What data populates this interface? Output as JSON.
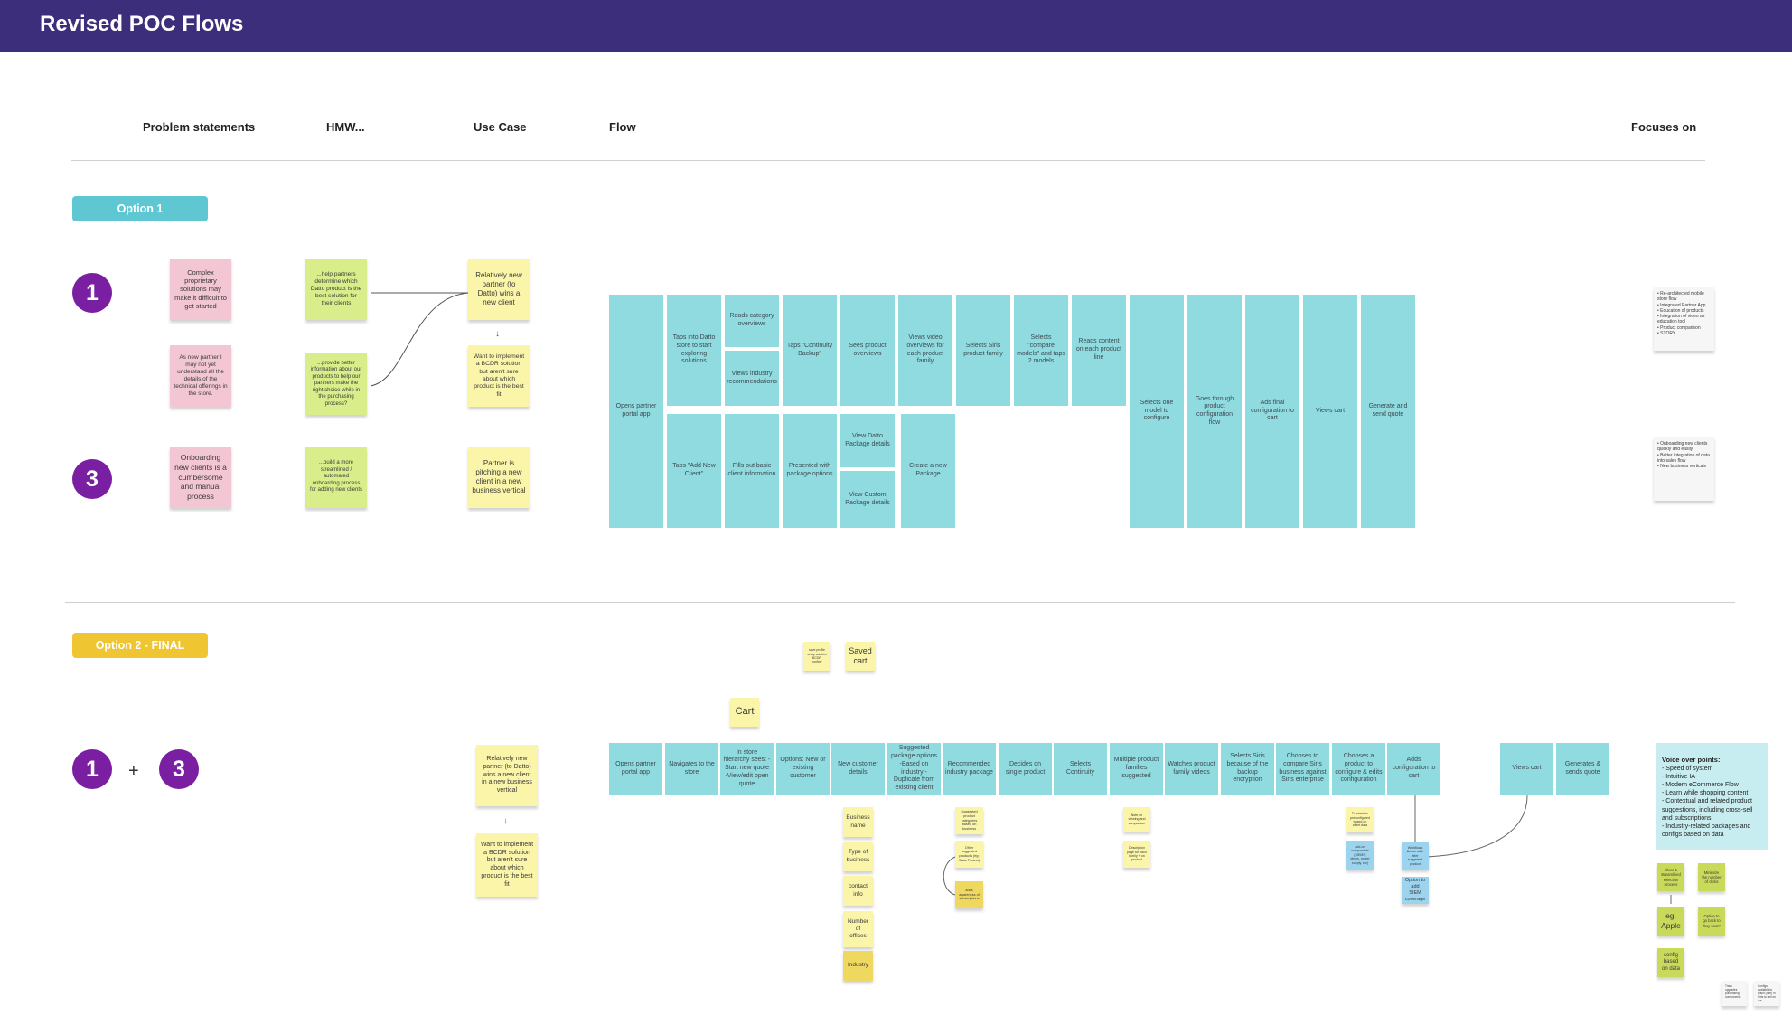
{
  "header": {
    "title": "Revised POC Flows"
  },
  "columns": {
    "problem": "Problem statements",
    "hmw": "HMW...",
    "use_case": "Use Case",
    "flow": "Flow",
    "focus": "Focuses on"
  },
  "option1": {
    "label": "Option 1",
    "numbers": [
      "1",
      "3"
    ],
    "problems": [
      "Complex proprietary solutions may make it difficult to get started",
      "As new partner I may not yet understand all the details of the technical offerings in the store.",
      "Onboarding new clients is a cumbersome and manual process"
    ],
    "hmw": [
      "...help partners determine which Datto product is the best solution for their clients",
      "...provide better information about our products to help our partners make the right choice while in the purchasing process?",
      "...build a more streamlined / automated onboarding process for adding new clients"
    ],
    "use_cases": [
      "Relatively new partner (to Datto) wins a new client",
      "Want to implement a BCDR solution but aren't sure about which product is the best fit",
      "Partner is pitching a new client in a new business vertical"
    ],
    "flow": {
      "open": "Opens partner portal app",
      "top": [
        "Taps into Datto store to start exploring solutions",
        "Reads category overviews",
        "Views industry recommendations",
        "Taps \"Continuity Backup\"",
        "Sees product overviews",
        "Views video overviews for each product family",
        "Selects Siris product family",
        "Selects \"compare models\" and taps 2 models",
        "Reads content on each product line"
      ],
      "bottom": [
        "Taps \"Add New Client\"",
        "Fills out basic client information",
        "Presented with package options",
        "View Datto Package details",
        "View Custom Package details",
        "Create a new Package"
      ],
      "tall": [
        "Selects one model to configure",
        "Goes through product configuration flow",
        "Ads final configuration to cart",
        "Views cart",
        "Generate and send quote"
      ]
    },
    "focus": [
      "• Re-architected mobile store flow\n• Integrated Partner App\n• Education of products\n• Integration of video as education tool\n• Product comparison\n• STORY",
      "• Onboarding new clients quickly and easily\n• Better integration of data into sales flow\n• New business verticals"
    ]
  },
  "option2": {
    "label": "Option 2 - FINAL",
    "numbers": [
      "1",
      "3"
    ],
    "plus": "+",
    "use_cases": [
      "Relatively new partner (to Datto) wins a new client in a new business vertical",
      "Want to implement a BCDR solution but aren't sure about which product is the best fit"
    ],
    "floating": {
      "small_note": "save profile setup solution BCDR config?",
      "saved_cart": "Saved cart",
      "cart": "Cart"
    },
    "flow": [
      "Opens partner portal app",
      "Navigates to the store",
      "In store hierarchy sees: - Start new quote -View/edit open quote",
      "Options: New or existing customer",
      "New customer details",
      "Suggested package options -Based on industry -Duplicate from existing client",
      "Recommended industry package",
      "Decides on single product",
      "Selects Continuity",
      "Multiple product families suggested",
      "Watches product family videos",
      "Selects Siris because of the backup encryption",
      "Chooses to compare Siris business against Siris enterprise",
      "Chooses a product to configure & edits configuration",
      "Adds configuration to cart",
      "Views cart",
      "Generates & sends quote"
    ],
    "customer_fields": [
      "Business name",
      "Type of business",
      "contact info",
      "Number of offices",
      "Industry"
    ],
    "package_notes": [
      "Suggested product categories based on business",
      "Other suggested products (eg: Saas Protect)",
      "adds awareness of subscriptions"
    ],
    "family_notes": [
      "Note on viewing and comparison",
      "Description page for each family + on product"
    ],
    "config_notes": [
      "Products in preconfigured based on client data",
      "add-on components (SIEMS, drives, power supply, etc)"
    ],
    "cart_notes": [
      "Workflows like an add-after suggested product",
      "Option to add SIEM coverage"
    ],
    "voice": {
      "title": "Voice over points:",
      "points": [
        "- Speed of system",
        "- Intuitive IA",
        "- Modern eCommerce Flow",
        "- Learn while shopping content",
        "- Contextual and related product suggestions, including cross-sell and subscriptions",
        "- Industry-related packages and configs based on data"
      ]
    },
    "focus_notes": [
      "Clear & streamlined selection process",
      "Minimize the number of clicks",
      "eg. Apple",
      "Option to go back to \"buy soon\"",
      "config based on data"
    ],
    "corner_notes": [
      "Track upgrades purchasing components",
      "Configs available to teach (one) in Siris to sell on our"
    ]
  },
  "colors": {
    "header": "#3d2e7c",
    "teal": "#8fdbe0",
    "purple": "#7b1fa2",
    "option1": "#5ec7d2",
    "option2": "#efc531"
  }
}
